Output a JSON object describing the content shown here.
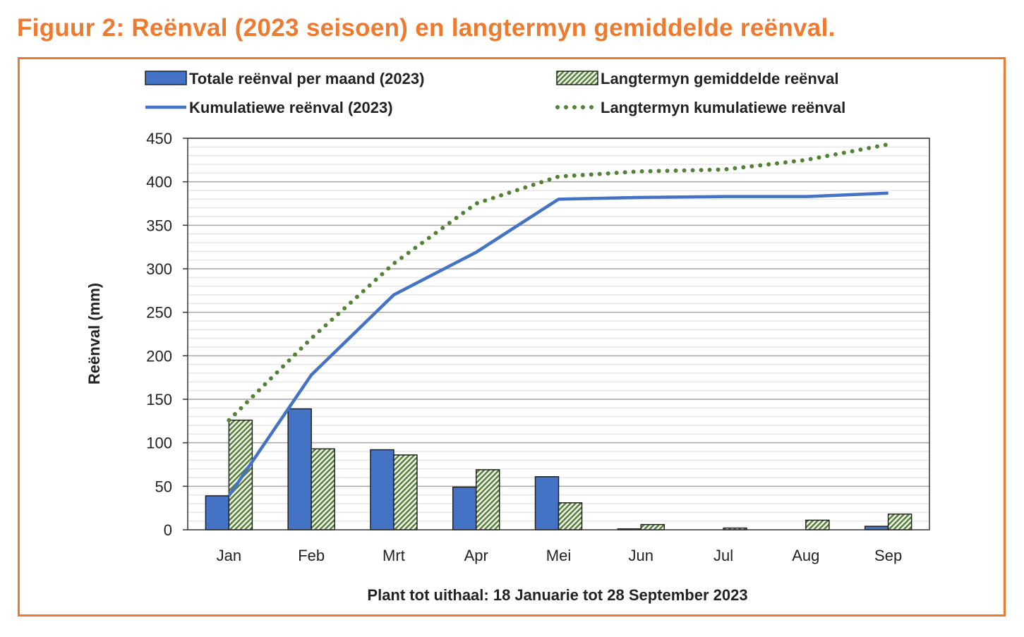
{
  "title": "Figuur 2: Reënval (2023 seisoen) en langtermyn gemiddelde reënval.",
  "colors": {
    "accent": "#EE7A30",
    "blue": "#4472C4",
    "green": "#548235"
  },
  "chart_data": {
    "type": "bar",
    "categories": [
      "Jan",
      "Feb",
      "Mrt",
      "Apr",
      "Mei",
      "Jun",
      "Jul",
      "Aug",
      "Sep"
    ],
    "ylabel": "Reënval (mm)",
    "xlabel": "Plant tot uithaal: 18 Januarie tot 28 September 2023",
    "ylim": [
      0,
      450
    ],
    "yticks": [
      0,
      50,
      100,
      150,
      200,
      250,
      300,
      350,
      400,
      450
    ],
    "grid": true,
    "legend_position": "top",
    "series": [
      {
        "name": "Totale reënval per maand (2023)",
        "type": "bar",
        "values": [
          39,
          139,
          92,
          49,
          61,
          1,
          0,
          0,
          4
        ]
      },
      {
        "name": "Langtermyn gemiddelde reënval",
        "type": "bar",
        "values": [
          126,
          93,
          86,
          69,
          31,
          6,
          2,
          11,
          18
        ]
      },
      {
        "name": "Kumulatiewe reënval (2023)",
        "type": "line",
        "values": [
          39,
          178,
          270,
          319,
          380,
          382,
          383,
          383,
          387
        ]
      },
      {
        "name": "Langtermyn kumulatiewe reënval",
        "type": "line-dotted",
        "values": [
          126,
          220,
          306,
          375,
          406,
          412,
          414,
          425,
          443
        ]
      }
    ]
  }
}
